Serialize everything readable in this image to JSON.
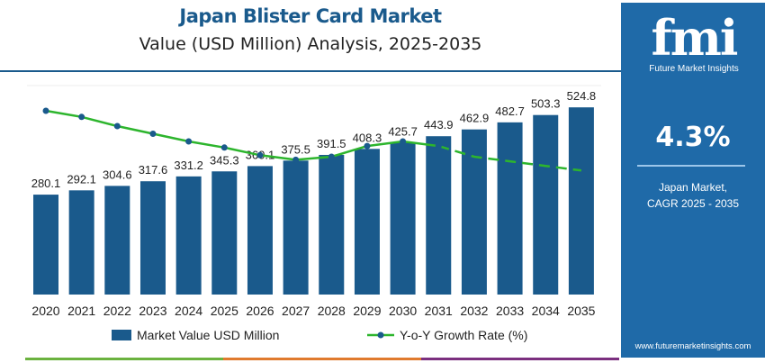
{
  "header": {
    "title": "Japan Blister Card Market",
    "subtitle": "Value (USD Million) Analysis, 2025-2035"
  },
  "sidebar": {
    "logo_text": "fmi",
    "logo_caption": "Future Market Insights",
    "cagr_value": "4.3%",
    "cagr_label_line1": "Japan Market,",
    "cagr_label_line2": "CAGR 2025 - 2035",
    "url": "www.futuremarketinsights.com"
  },
  "colors": {
    "bar": "#1a5a8c",
    "line": "#2db52d",
    "marker": "#1a5a8c",
    "sidebar": "#1f6aa8",
    "title": "#1a5a8c",
    "strip": [
      "#6bb23f",
      "#e07a2e",
      "#7b2f7f"
    ]
  },
  "chart_data": {
    "type": "bar+line",
    "categories": [
      "2020",
      "2021",
      "2022",
      "2023",
      "2024",
      "2025",
      "2026",
      "2027",
      "2028",
      "2029",
      "2030",
      "2031",
      "2032",
      "2033",
      "2034",
      "2035"
    ],
    "series": [
      {
        "name": "Market Value USD Million",
        "type": "bar",
        "values": [
          280.1,
          292.1,
          304.6,
          317.6,
          331.2,
          345.3,
          360.1,
          375.5,
          391.5,
          408.3,
          425.7,
          443.9,
          462.9,
          482.7,
          503.3,
          524.8
        ],
        "labels": [
          "280.1",
          "292.1",
          "304.6",
          "317.6",
          "331.2",
          "345.3",
          "360.1",
          "375.5",
          "391.5",
          "408.3",
          "425.7",
          "443.9",
          "462.9",
          "482.7",
          "503.3",
          "524.8"
        ]
      },
      {
        "name": "Y-o-Y Growth Rate (%)",
        "type": "line",
        "values": [
          5.6,
          5.4,
          5.1,
          4.85,
          4.6,
          4.4,
          4.15,
          4.0,
          4.1,
          4.45,
          4.6,
          4.45,
          4.1,
          3.95,
          3.8,
          3.65
        ],
        "dashed_from": "2031"
      }
    ],
    "legend": {
      "position": "bottom",
      "items": [
        "Market Value USD Million",
        "Y-o-Y Growth Rate (%)"
      ]
    },
    "grid": false
  }
}
